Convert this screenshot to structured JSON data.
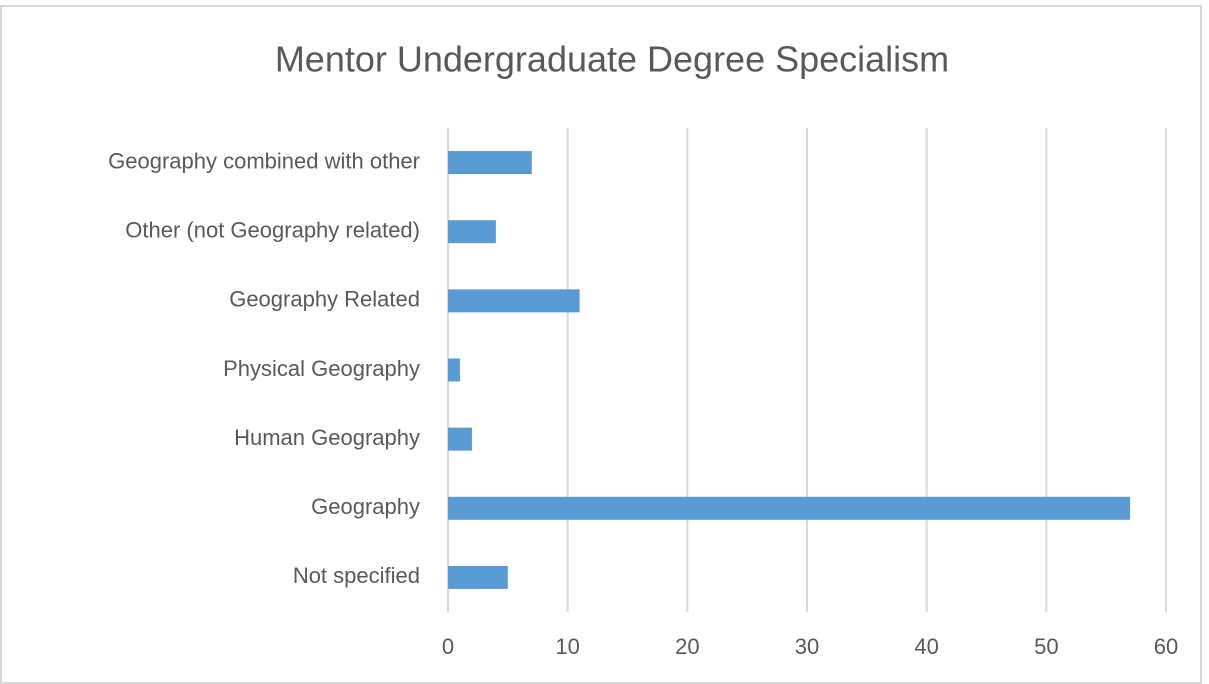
{
  "chart_data": {
    "type": "hbar",
    "title": "Mentor Undergraduate Degree Specialism",
    "categories": [
      "Geography combined with other",
      "Other (not Geography related)",
      "Geography Related",
      "Physical Geography",
      "Human Geography",
      "Geography",
      "Not specified"
    ],
    "values": [
      7,
      4,
      11,
      1,
      2,
      57,
      5
    ],
    "color": "#5b9bd5",
    "xlim": [
      0,
      60
    ],
    "xticks": [
      0,
      10,
      20,
      30,
      40,
      50,
      60
    ],
    "grid": true
  }
}
